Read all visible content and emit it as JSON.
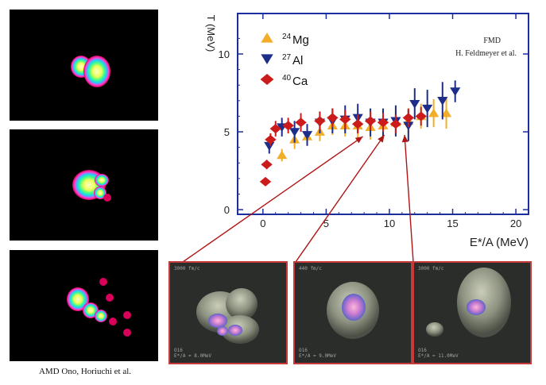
{
  "amd_caption": "AMD Ono, Horiuchi et al.",
  "thumbnails": [
    {
      "time": "3000 fm/c",
      "nucleus": "O16",
      "energy": "E*/A = 8.0MeV"
    },
    {
      "time": "440 fm/c",
      "nucleus": "O16",
      "energy": "E*/A = 9.0MeV"
    },
    {
      "time": "3000 fm/c",
      "nucleus": "O16",
      "energy": "E*/A = 11.0MeV"
    }
  ],
  "colors": {
    "mg": "#f2ad2a",
    "al": "#1e2d8a",
    "ca": "#cc1b1b",
    "frame": "#1a2ea0",
    "arrow": "#b01515"
  },
  "chart_data": {
    "type": "scatter",
    "xlabel": "E*/A (MeV)",
    "ylabel": "T (MeV)",
    "xlim": [
      -2,
      21
    ],
    "ylim": [
      -0.3,
      12.6
    ],
    "xticks": [
      0,
      5,
      10,
      15,
      20
    ],
    "yticks": [
      0,
      5,
      10
    ],
    "annotation_line1": "FMD",
    "annotation_line2": "H. Feldmeyer et al.",
    "series": [
      {
        "name": "24Mg",
        "sup": "24",
        "label": "Mg",
        "marker": "triangle-up",
        "color": "#f2ad2a",
        "points": [
          [
            1.5,
            3.5,
            0.4
          ],
          [
            2.5,
            4.5,
            0.6
          ],
          [
            3.5,
            4.7,
            0.6
          ],
          [
            4.5,
            5.0,
            0.6
          ],
          [
            5.5,
            5.4,
            0.6
          ],
          [
            6.5,
            5.4,
            0.7
          ],
          [
            7.5,
            5.4,
            0.8
          ],
          [
            8.5,
            5.3,
            0.8
          ],
          [
            9.5,
            5.4,
            0.8
          ],
          [
            10.5,
            5.6,
            0.8
          ],
          [
            11.5,
            5.7,
            0.8
          ],
          [
            12.5,
            6.0,
            0.8
          ],
          [
            13.5,
            6.2,
            0.9
          ],
          [
            14.5,
            6.2,
            1.0
          ]
        ]
      },
      {
        "name": "27Al",
        "sup": "27",
        "label": "Al",
        "marker": "triangle-down",
        "color": "#1e2d8a",
        "points": [
          [
            0.5,
            4.1,
            0.5
          ],
          [
            1.5,
            5.3,
            0.6
          ],
          [
            2.5,
            5.0,
            0.7
          ],
          [
            3.5,
            4.8,
            0.7
          ],
          [
            4.5,
            5.6,
            0.7
          ],
          [
            5.5,
            5.7,
            0.8
          ],
          [
            6.5,
            5.8,
            0.9
          ],
          [
            7.5,
            5.9,
            0.9
          ],
          [
            8.5,
            5.6,
            0.9
          ],
          [
            9.5,
            5.6,
            0.9
          ],
          [
            10.5,
            5.7,
            1.0
          ],
          [
            11.5,
            5.4,
            1.0
          ],
          [
            12.0,
            6.8,
            1.0
          ],
          [
            13.0,
            6.5,
            1.2
          ],
          [
            14.2,
            7.0,
            1.2
          ],
          [
            15.2,
            7.6,
            0.7
          ]
        ]
      },
      {
        "name": "40Ca",
        "sup": "40",
        "label": "Ca",
        "marker": "diamond",
        "color": "#cc1b1b",
        "points": [
          [
            0.2,
            1.8,
            0.2
          ],
          [
            0.3,
            2.9,
            0.3
          ],
          [
            0.6,
            4.5,
            0.4
          ],
          [
            1.0,
            5.2,
            0.5
          ],
          [
            2.0,
            5.4,
            0.5
          ],
          [
            3.0,
            5.6,
            0.6
          ],
          [
            4.5,
            5.7,
            0.6
          ],
          [
            5.5,
            5.9,
            0.6
          ],
          [
            6.5,
            5.8,
            0.6
          ],
          [
            7.5,
            5.5,
            0.6
          ],
          [
            8.5,
            5.7,
            0.6
          ],
          [
            9.5,
            5.6,
            0.6
          ],
          [
            10.5,
            5.5,
            0.6
          ],
          [
            11.5,
            5.9,
            0.6
          ],
          [
            12.5,
            6.0,
            0.6
          ]
        ]
      }
    ],
    "arrows": [
      {
        "from": [
          7.9,
          4.7
        ],
        "to_panel": 0
      },
      {
        "from": [
          9.6,
          4.8
        ],
        "to_panel": 1
      },
      {
        "from": [
          11.2,
          4.8
        ],
        "to_panel": 2
      }
    ]
  }
}
